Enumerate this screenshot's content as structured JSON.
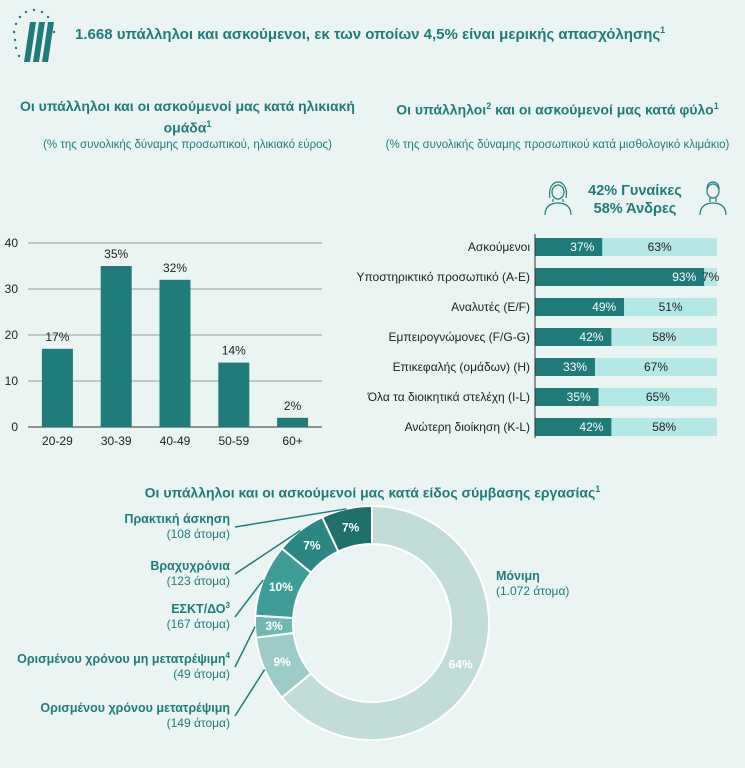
{
  "headline": "1.668 υπάλληλοι και ασκούμενοι, εκ των οποίων 4,5% είναι μερικής απασχόλησης",
  "headline_note": "1",
  "age_chart": {
    "title": "Οι υπάλληλοι και οι ασκούμενοί μας κατά ηλικιακή ομάδα",
    "title_note": "1",
    "subtitle": "(% της συνολικής δύναμης προσωπικού, ηλικιακό εύρος)"
  },
  "gender_chart": {
    "title": "Οι υπάλληλοι",
    "title_mid": " και οι ασκούμενοί μας κατά φύλο",
    "note_a": "2",
    "note_b": "1",
    "subtitle": "(% της συνολικής δύναμης προσωπικού κατά μισθολογικό κλιμάκιο)",
    "women_label": "42% Γυναίκες",
    "men_label": "58% Άνδρες"
  },
  "contract_chart": {
    "title": "Οι υπάλληλοι και οι ασκούμενοί μας κατά είδος σύμβασης εργασίας",
    "title_note": "1"
  },
  "colors": {
    "dark": "#1f7c7a",
    "light": "#b3e8e6",
    "mint": "#c2dcd7"
  },
  "chart_data": [
    {
      "type": "bar",
      "categories": [
        "20-29",
        "30-39",
        "40-49",
        "50-59",
        "60+"
      ],
      "values": [
        17,
        35,
        32,
        14,
        2
      ],
      "data_labels": [
        "17%",
        "35%",
        "32%",
        "14%",
        "2%"
      ],
      "yticks": [
        "0",
        "10",
        "20",
        "30",
        "40"
      ],
      "ylim": [
        0,
        40
      ],
      "grid": true
    },
    {
      "type": "bar",
      "orientation": "horizontal-stacked",
      "categories": [
        "Ασκούμενοι",
        "Υποστηρικτικό προσωπικό (A-E)",
        "Αναλυτές (E/F)",
        "Εμπειρογνώμονες (F/G-G)",
        "Επικεφαλής (ομάδων) (H)",
        "Όλα τα διοικητικά στελέχη (I-L)",
        "Ανώτερη διοίκηση (K-L)"
      ],
      "series": [
        {
          "values": [
            37,
            93,
            49,
            42,
            33,
            35,
            42
          ],
          "labels": [
            "37%",
            "93%",
            "49%",
            "42%",
            "33%",
            "35%",
            "42%"
          ]
        },
        {
          "values": [
            63,
            7,
            51,
            58,
            67,
            65,
            58
          ],
          "labels": [
            "63%",
            "7%",
            "51%",
            "58%",
            "67%",
            "65%",
            "58%"
          ]
        }
      ],
      "xlim": [
        0,
        100
      ]
    },
    {
      "type": "pie",
      "style": "donut",
      "slices": [
        {
          "name": "Μόνιμη",
          "detail": "(1.072 άτομα)",
          "value": 64,
          "label": "64%",
          "color": "#c2dcd7"
        },
        {
          "name": "Ορισμένου χρόνου μετατρέψιμη",
          "detail": "(149 άτομα)",
          "value": 9,
          "label": "9%",
          "color": "#9cccc8"
        },
        {
          "name": "Ορισμένου χρόνου μη μετατρέψιμη",
          "note": "4",
          "detail": "(49 άτομα)",
          "value": 3,
          "label": "3%",
          "color": "#6fb8b4"
        },
        {
          "name": "ΕΣΚΤ/ΔΟ",
          "note": "3",
          "detail": "(167 άτομα)",
          "value": 10,
          "label": "10%",
          "color": "#3f9d99"
        },
        {
          "name": "Βραχυχρόνια",
          "detail": "(123 άτομα)",
          "value": 7,
          "label": "7%",
          "color": "#2b8784"
        },
        {
          "name": "Πρακτική άσκηση",
          "detail": "(108 άτομα)",
          "value": 7,
          "label": "7%",
          "color": "#1f706d"
        }
      ]
    }
  ]
}
